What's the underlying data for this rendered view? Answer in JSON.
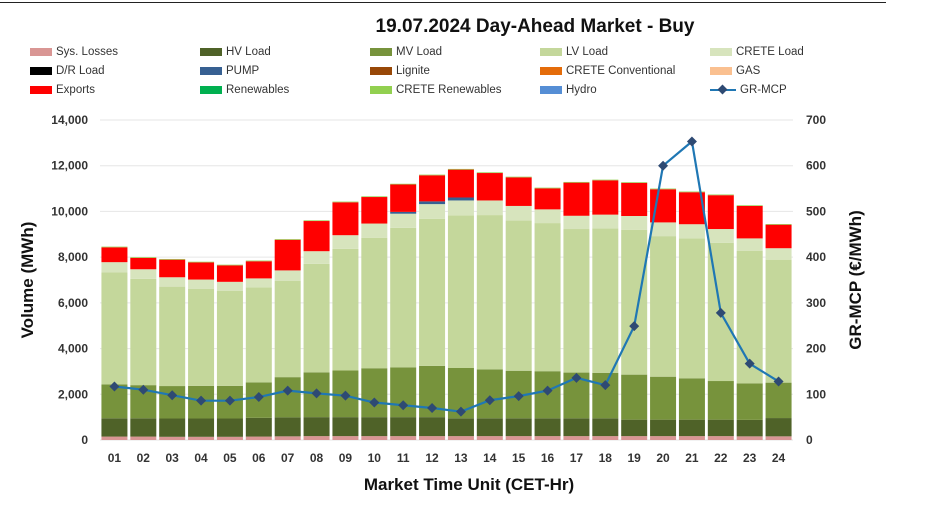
{
  "chart_data": {
    "type": "bar",
    "title": "19.07.2024  Day-Ahead Market - Buy",
    "xlabel": "Market Time Unit (CET-Hr)",
    "ylabel": "Volume (MWh)",
    "y2label": "GR-MCP (€/MWh)",
    "ylim": [
      0,
      14000
    ],
    "y2lim": [
      0,
      700
    ],
    "yticks": [
      "0",
      "2,000",
      "4,000",
      "6,000",
      "8,000",
      "10,000",
      "12,000",
      "14,000"
    ],
    "y2ticks": [
      "0",
      "100",
      "200",
      "300",
      "400",
      "500",
      "600",
      "700"
    ],
    "categories": [
      "01",
      "02",
      "03",
      "04",
      "05",
      "06",
      "07",
      "08",
      "09",
      "10",
      "11",
      "12",
      "13",
      "14",
      "15",
      "16",
      "17",
      "18",
      "19",
      "20",
      "21",
      "22",
      "23",
      "24"
    ],
    "legend_placement": "top",
    "series": [
      {
        "name": "Sys. Losses",
        "color": "#d99694",
        "values": [
          150,
          150,
          140,
          140,
          140,
          150,
          160,
          170,
          170,
          170,
          170,
          170,
          170,
          170,
          170,
          170,
          170,
          170,
          170,
          170,
          170,
          170,
          160,
          160
        ]
      },
      {
        "name": "HV Load",
        "color": "#4f6228",
        "values": [
          800,
          800,
          800,
          800,
          800,
          820,
          830,
          830,
          830,
          830,
          830,
          830,
          780,
          780,
          780,
          780,
          780,
          780,
          720,
          720,
          720,
          720,
          720,
          800
        ]
      },
      {
        "name": "MV Load",
        "color": "#77933c",
        "values": [
          1480,
          1450,
          1420,
          1430,
          1430,
          1550,
          1760,
          1960,
          2040,
          2140,
          2180,
          2240,
          2200,
          2140,
          2080,
          2060,
          2000,
          1990,
          1970,
          1880,
          1810,
          1690,
          1600,
          1550
        ]
      },
      {
        "name": "LV Load",
        "color": "#c4d79b",
        "values": [
          4900,
          4650,
          4350,
          4250,
          4150,
          4150,
          4220,
          4750,
          5320,
          5710,
          6100,
          6440,
          6680,
          6750,
          6570,
          6480,
          6280,
          6320,
          6340,
          6150,
          6120,
          6050,
          5790,
          5380
        ]
      },
      {
        "name": "CRETE Load",
        "color": "#d7e4bd",
        "values": [
          450,
          420,
          410,
          400,
          400,
          400,
          450,
          550,
          600,
          620,
          620,
          640,
          650,
          640,
          640,
          600,
          580,
          600,
          600,
          600,
          620,
          600,
          550,
          500
        ]
      },
      {
        "name": "D/R Load",
        "color": "#000000",
        "values": [
          0,
          0,
          0,
          0,
          0,
          0,
          0,
          0,
          0,
          0,
          0,
          0,
          0,
          0,
          0,
          0,
          0,
          0,
          0,
          0,
          0,
          0,
          0,
          0
        ]
      },
      {
        "name": "PUMP",
        "color": "#376092",
        "values": [
          0,
          0,
          0,
          0,
          0,
          0,
          0,
          0,
          0,
          0,
          80,
          120,
          130,
          0,
          0,
          0,
          0,
          0,
          0,
          0,
          0,
          0,
          0,
          0
        ]
      },
      {
        "name": "Lignite",
        "color": "#984807",
        "values": [
          0,
          0,
          0,
          0,
          0,
          0,
          0,
          0,
          0,
          0,
          0,
          0,
          0,
          0,
          0,
          0,
          0,
          0,
          0,
          0,
          0,
          0,
          0,
          0
        ]
      },
      {
        "name": "CRETE Conventional",
        "color": "#e46c0a",
        "values": [
          0,
          0,
          0,
          0,
          0,
          0,
          0,
          0,
          0,
          0,
          0,
          0,
          0,
          0,
          0,
          0,
          0,
          0,
          0,
          0,
          0,
          0,
          0,
          0
        ]
      },
      {
        "name": "GAS",
        "color": "#fac090",
        "values": [
          0,
          0,
          0,
          0,
          0,
          0,
          0,
          0,
          0,
          0,
          0,
          0,
          0,
          0,
          0,
          0,
          0,
          0,
          0,
          0,
          0,
          0,
          0,
          0
        ]
      },
      {
        "name": "Exports",
        "color": "#ff0000",
        "values": [
          650,
          500,
          770,
          750,
          720,
          750,
          1340,
          1320,
          1440,
          1160,
          1200,
          1140,
          1220,
          1200,
          1250,
          920,
          1450,
          1500,
          1450,
          1450,
          1400,
          1480,
          1420,
          1030
        ]
      },
      {
        "name": "Renewables",
        "color": "#00b050",
        "values": [
          0,
          0,
          0,
          0,
          0,
          0,
          0,
          0,
          0,
          0,
          0,
          0,
          0,
          0,
          0,
          0,
          0,
          0,
          0,
          0,
          0,
          0,
          0,
          0
        ]
      },
      {
        "name": "CRETE Renewables",
        "color": "#92d050",
        "values": [
          30,
          30,
          30,
          30,
          30,
          30,
          30,
          30,
          30,
          30,
          30,
          30,
          30,
          30,
          30,
          30,
          30,
          30,
          30,
          30,
          30,
          30,
          30,
          30
        ]
      },
      {
        "name": "Hydro",
        "color": "#558ed5",
        "values": [
          0,
          0,
          0,
          0,
          0,
          0,
          0,
          0,
          0,
          0,
          0,
          0,
          0,
          0,
          0,
          0,
          0,
          0,
          0,
          0,
          0,
          0,
          0,
          0
        ]
      }
    ],
    "line_series": {
      "name": "GR-MCP",
      "color": "#1f77b4",
      "marker_color": "#2e4a73",
      "values": [
        117,
        110,
        98,
        86,
        86,
        94,
        108,
        102,
        97,
        82,
        76,
        70,
        62,
        87,
        96,
        108,
        136,
        120,
        249,
        600,
        653,
        278,
        167,
        128
      ]
    }
  }
}
